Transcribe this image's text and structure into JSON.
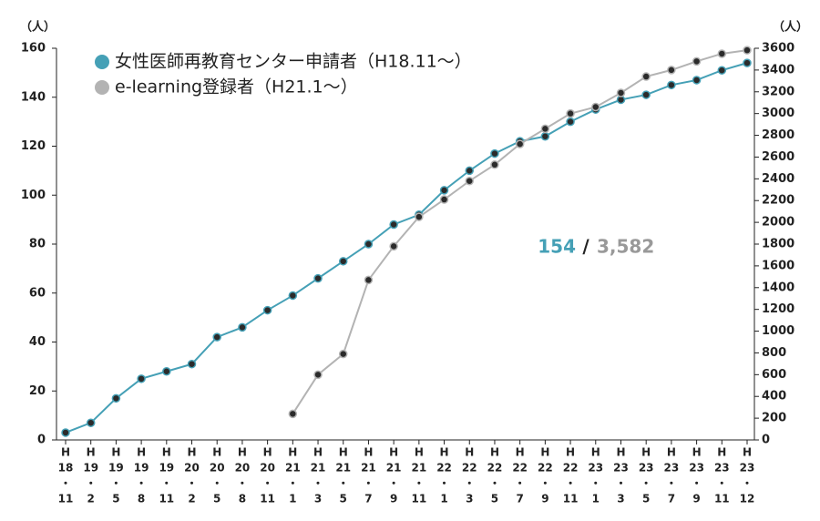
{
  "chart_data": {
    "type": "line",
    "y_label": "（人）",
    "y2_label": "（人）",
    "categories": [
      [
        "H",
        "18",
        "・",
        "11"
      ],
      [
        "H",
        "19",
        "・",
        "2"
      ],
      [
        "H",
        "19",
        "・",
        "5"
      ],
      [
        "H",
        "19",
        "・",
        "8"
      ],
      [
        "H",
        "19",
        "・",
        "11"
      ],
      [
        "H",
        "20",
        "・",
        "2"
      ],
      [
        "H",
        "20",
        "・",
        "5"
      ],
      [
        "H",
        "20",
        "・",
        "8"
      ],
      [
        "H",
        "20",
        "・",
        "11"
      ],
      [
        "H",
        "21",
        "・",
        "1"
      ],
      [
        "H",
        "21",
        "・",
        "3"
      ],
      [
        "H",
        "21",
        "・",
        "5"
      ],
      [
        "H",
        "21",
        "・",
        "7"
      ],
      [
        "H",
        "21",
        "・",
        "9"
      ],
      [
        "H",
        "21",
        "・",
        "11"
      ],
      [
        "H",
        "22",
        "・",
        "1"
      ],
      [
        "H",
        "22",
        "・",
        "3"
      ],
      [
        "H",
        "22",
        "・",
        "5"
      ],
      [
        "H",
        "22",
        "・",
        "7"
      ],
      [
        "H",
        "22",
        "・",
        "9"
      ],
      [
        "H",
        "22",
        "・",
        "11"
      ],
      [
        "H",
        "23",
        "・",
        "1"
      ],
      [
        "H",
        "23",
        "・",
        "3"
      ],
      [
        "H",
        "23",
        "・",
        "5"
      ],
      [
        "H",
        "23",
        "・",
        "7"
      ],
      [
        "H",
        "23",
        "・",
        "9"
      ],
      [
        "H",
        "23",
        "・",
        "11"
      ],
      [
        "H",
        "23",
        "・",
        "12"
      ]
    ],
    "series": [
      {
        "name": "女性医師再教育センター申請者（H18.11〜）",
        "color": "#45a0b6",
        "axis": "y",
        "values": [
          3,
          7,
          17,
          25,
          28,
          31,
          42,
          46,
          53,
          59,
          66,
          73,
          80,
          88,
          92,
          102,
          110,
          117,
          122,
          124,
          130,
          135,
          139,
          141,
          145,
          147,
          151,
          154
        ]
      },
      {
        "name": "e-learning登録者（H21.1〜）",
        "color": "#b3b3b3",
        "axis": "y2",
        "values": [
          null,
          null,
          null,
          null,
          null,
          null,
          null,
          null,
          null,
          240,
          600,
          790,
          1470,
          1780,
          2050,
          2210,
          2380,
          2530,
          2720,
          2860,
          3000,
          3060,
          3190,
          3340,
          3400,
          3480,
          3550,
          3582
        ]
      }
    ],
    "annotation": {
      "left": "154",
      "sep": "/",
      "right": "3,582"
    },
    "ylim": [
      0,
      160
    ],
    "yticks": [
      0,
      20,
      40,
      60,
      80,
      100,
      120,
      140,
      160
    ],
    "y2lim": [
      0,
      3600
    ],
    "y2ticks": [
      0,
      200,
      400,
      600,
      800,
      1000,
      1200,
      1400,
      1600,
      1800,
      2000,
      2200,
      2400,
      2600,
      2800,
      3000,
      3200,
      3400,
      3600
    ],
    "grid": false
  }
}
